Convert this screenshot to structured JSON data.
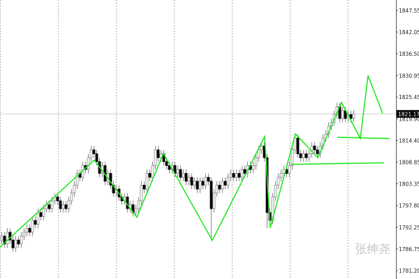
{
  "chart_data": {
    "type": "candlestick",
    "current_price": "1821.17",
    "y_ticks": [
      "1847.55",
      "1842.05",
      "1836.50",
      "1830.95",
      "1825.45",
      "1819.90",
      "1814.40",
      "1808.85",
      "1803.35",
      "1797.80",
      "1792.25",
      "1786.75",
      "1781.20"
    ],
    "ylim": [
      1781.2,
      1847.55
    ],
    "grid": "vertical dashed",
    "closes": [
      1790,
      1788,
      1791,
      1789,
      1787,
      1789,
      1788,
      1790,
      1791,
      1792,
      1791,
      1794,
      1793,
      1796,
      1795,
      1797,
      1798,
      1797,
      1799,
      1800,
      1799,
      1797,
      1798,
      1797,
      1799,
      1801,
      1803,
      1806,
      1805,
      1808,
      1807,
      1810,
      1812,
      1811,
      1809,
      1806,
      1808,
      1804,
      1806,
      1803,
      1801,
      1802,
      1800,
      1799,
      1800,
      1797,
      1798,
      1796,
      1797,
      1799,
      1803,
      1802,
      1806,
      1805,
      1808,
      1812,
      1810,
      1811,
      1809,
      1808,
      1807,
      1808,
      1806,
      1807,
      1805,
      1806,
      1804,
      1805,
      1803,
      1804,
      1802,
      1804,
      1803,
      1805,
      1804,
      1797,
      1801,
      1803,
      1802,
      1804,
      1803,
      1805,
      1806,
      1805,
      1806,
      1805,
      1807,
      1806,
      1808,
      1807,
      1808,
      1810,
      1812,
      1813,
      1810,
      1796,
      1794,
      1800,
      1803,
      1805,
      1806,
      1807,
      1806,
      1808,
      1812,
      1815,
      1811,
      1810,
      1811,
      1810,
      1811,
      1813,
      1812,
      1811,
      1813,
      1815,
      1816,
      1818,
      1819,
      1821,
      1823,
      1820,
      1822,
      1820,
      1821,
      1820,
      1821.17
    ],
    "low_overrides": {
      "75": 1789,
      "95": 1792
    },
    "zigzag": [
      [
        -0.5,
        1787.2
      ],
      [
        33.25,
        1809.4
      ],
      [
        48.5,
        1794.8
      ],
      [
        58,
        1811.1
      ],
      [
        75.5,
        1788.9
      ],
      [
        94.25,
        1815.4
      ],
      [
        96.25,
        1792.1
      ],
      [
        105.25,
        1816.1
      ],
      [
        113.25,
        1810.0
      ],
      [
        121.75,
        1824.1
      ],
      [
        128.5,
        1814.9
      ],
      [
        131.25,
        1830.9
      ],
      [
        136.5,
        1821.3
      ]
    ],
    "levels": [
      [
        [
          120.25,
          1815.2
        ],
        [
          139,
          1814.9
        ]
      ],
      [
        [
          103.75,
          1808.3
        ],
        [
          137,
          1808.7
        ]
      ]
    ],
    "colors": {
      "up": "#ffffff",
      "down": "#000000",
      "wick": "#8c8c8c",
      "zigzag": "#22e622",
      "grid": "#9a9a9a",
      "price_line": "#d0d0d0"
    }
  },
  "watermark": "张绅尧"
}
